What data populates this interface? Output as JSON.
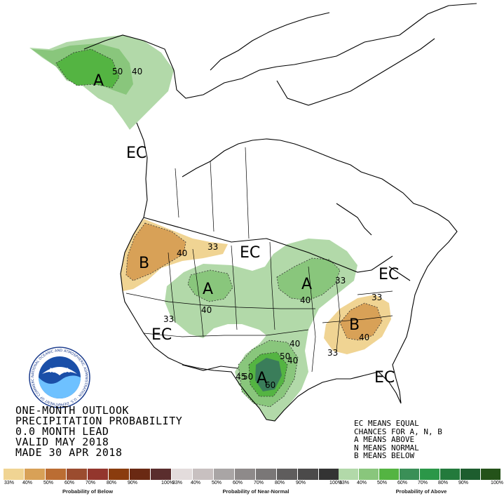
{
  "map": {
    "category_labels": [
      "A",
      "EC",
      "B",
      "EC",
      "A",
      "A",
      "EC",
      "B",
      "EC",
      "A",
      "EC"
    ],
    "contour_labels": [
      "50",
      "40",
      "40",
      "33",
      "40",
      "33",
      "40",
      "33",
      "33",
      "40",
      "33",
      "40",
      "40",
      "50",
      "50",
      "45",
      "60"
    ]
  },
  "title": {
    "line1": "ONE-MONTH OUTLOOK",
    "line2": "PRECIPITATION PROBABILITY",
    "line3": "0.0 MONTH LEAD",
    "line4": "VALID MAY 2018",
    "line5": "MADE 30 APR 2018"
  },
  "notes": {
    "line1": "EC MEANS EQUAL",
    "line2": "CHANCES FOR A, N, B",
    "line3": "A MEANS ABOVE",
    "line4": "N MEANS NORMAL",
    "line5": "B MEANS BELOW"
  },
  "legend": {
    "below": {
      "title": "Probability of Below",
      "ticks": [
        "33%",
        "40%",
        "50%",
        "60%",
        "70%",
        "80%",
        "90%",
        "100%"
      ],
      "colors": [
        "#f0d493",
        "#d8a157",
        "#bb6d33",
        "#9b4c2f",
        "#93362d",
        "#8a3c0e",
        "#6a2913",
        "#5a2d2d"
      ]
    },
    "normal": {
      "title": "Probability of Near-Normal",
      "ticks": [
        "33%",
        "40%",
        "50%",
        "60%",
        "70%",
        "80%",
        "90%",
        "100%"
      ],
      "colors": [
        "#e3dcdc",
        "#c8c0c0",
        "#a9a5a5",
        "#8e8a8a",
        "#7a7777",
        "#5f5d5d",
        "#4b4a4a",
        "#333333"
      ]
    },
    "above": {
      "title": "Probability of Above",
      "ticks": [
        "33%",
        "40%",
        "50%",
        "60%",
        "70%",
        "80%",
        "90%",
        "100%"
      ],
      "colors": [
        "#b2d9a9",
        "#89c67c",
        "#54b442",
        "#3a8f57",
        "#2b9748",
        "#237a3c",
        "#1d5d2e",
        "#245219"
      ]
    }
  },
  "logo_text": {
    "center": "NOAA",
    "ring": "NATIONAL OCEANIC AND ATMOSPHERIC ADMINISTRATION · U.S. DEPARTMENT OF COMMERCE"
  },
  "colors": {
    "above_33": "#b2d9a9",
    "above_40": "#89c67c",
    "above_50": "#54b442",
    "above_60": "#3a7d5a",
    "below_33": "#f0d493",
    "below_40": "#d8a157"
  }
}
